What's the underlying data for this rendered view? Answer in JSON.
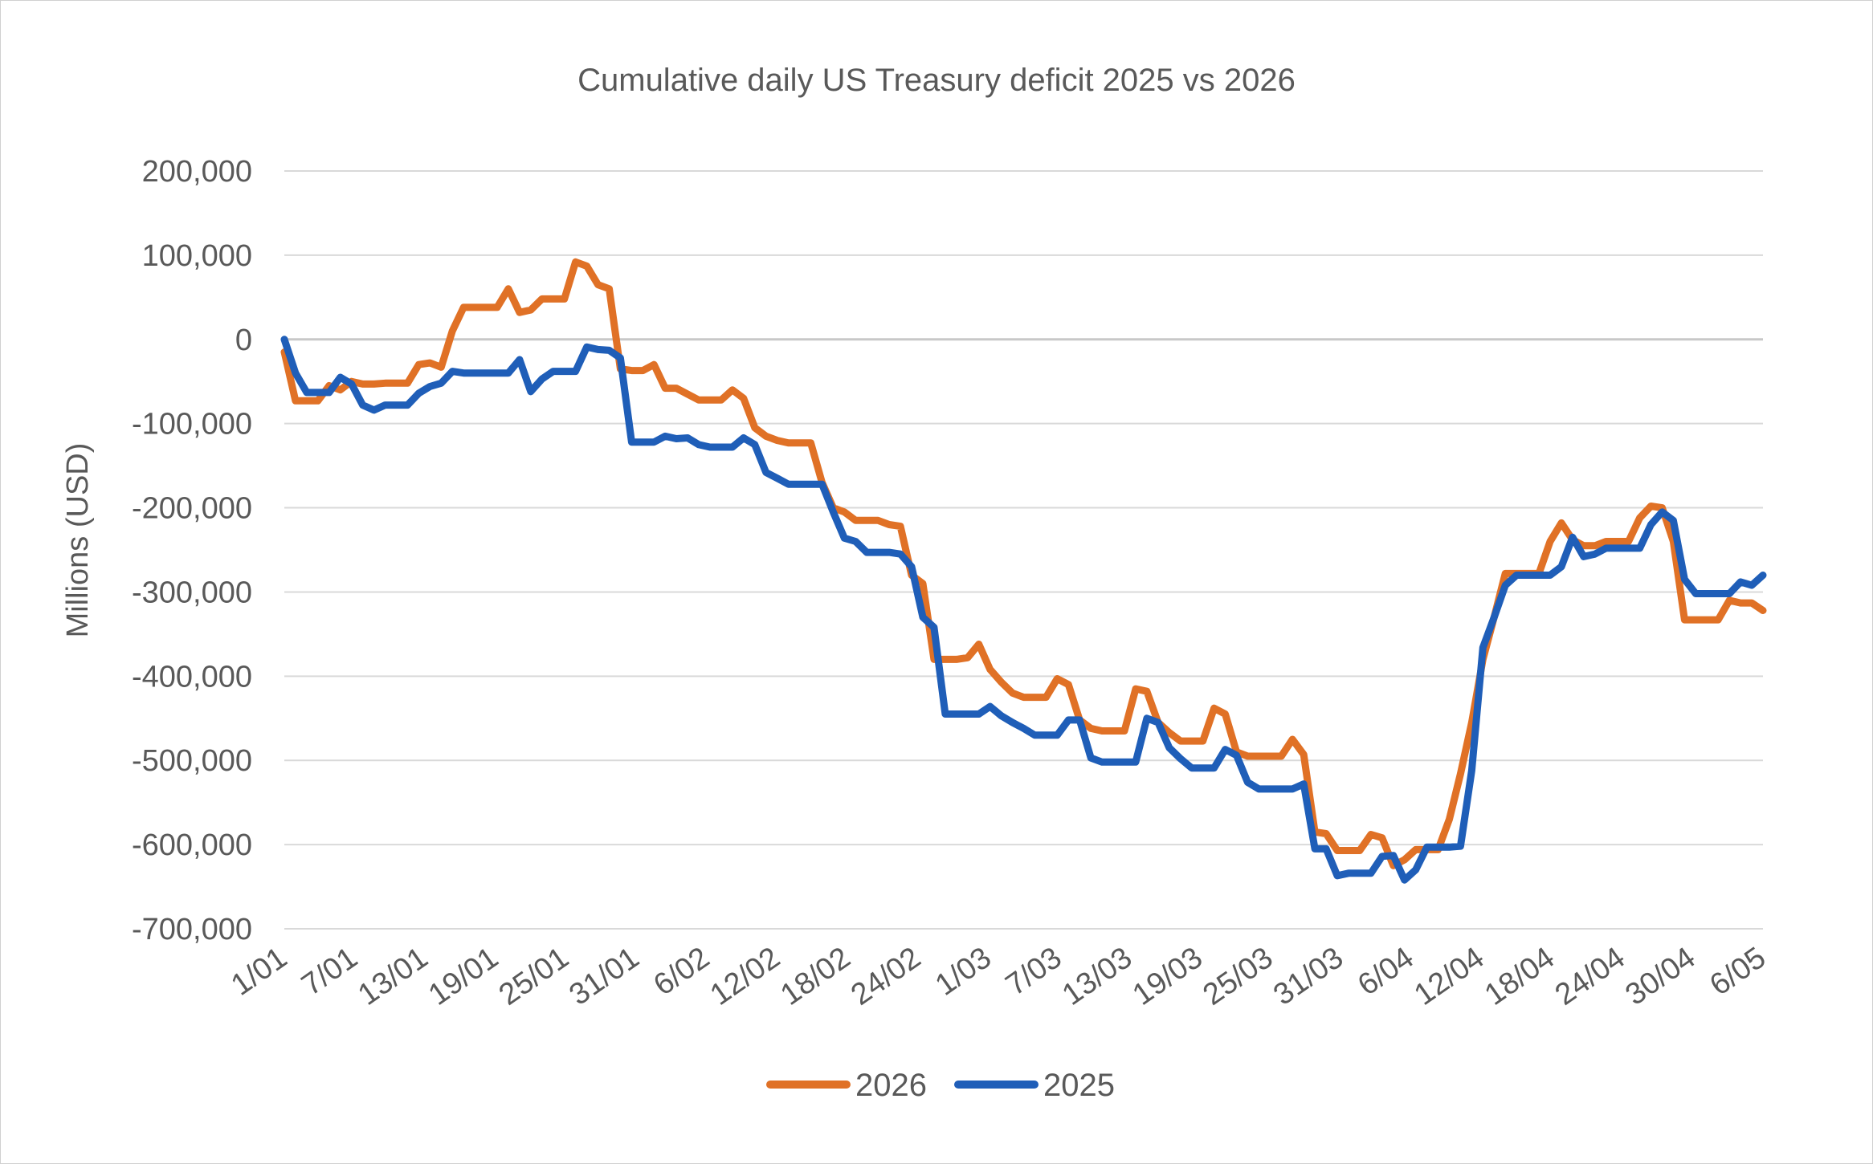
{
  "chart_data": {
    "type": "line",
    "title": "Cumulative daily US Treasury deficit 2025 vs 2026",
    "ylabel": "Millions (USD)",
    "xlabel": "",
    "ylim": [
      -700000,
      200000
    ],
    "yticks": [
      200000,
      100000,
      0,
      -100000,
      -200000,
      -300000,
      -400000,
      -500000,
      -600000,
      -700000
    ],
    "ytick_labels": [
      "200,000",
      "100,000",
      "0",
      "-100,000",
      "-200,000",
      "-300,000",
      "-400,000",
      "-500,000",
      "-600,000",
      "-700,000"
    ],
    "xtick_labels": [
      "1/01",
      "7/01",
      "13/01",
      "19/01",
      "25/01",
      "31/01",
      "6/02",
      "12/02",
      "18/02",
      "24/02",
      "1/03",
      "7/03",
      "13/03",
      "19/03",
      "25/03",
      "31/03",
      "6/04",
      "12/04",
      "18/04",
      "24/04",
      "30/04",
      "6/05"
    ],
    "x_start": "1/01",
    "x_end": "6/05",
    "grid": true,
    "legend": "bottom",
    "series": [
      {
        "name": "2026",
        "color": "#e07126",
        "values": [
          -15000,
          -73000,
          -73000,
          -73000,
          -55000,
          -60000,
          -50000,
          -53000,
          -53000,
          -52000,
          -52000,
          -52000,
          -30000,
          -28000,
          -33000,
          10000,
          38000,
          38000,
          38000,
          38000,
          60000,
          32000,
          35000,
          48000,
          48000,
          48000,
          92000,
          87000,
          65000,
          60000,
          -35000,
          -37000,
          -37000,
          -30000,
          -58000,
          -58000,
          -65000,
          -72000,
          -72000,
          -72000,
          -60000,
          -70000,
          -105000,
          -115000,
          -120000,
          -123000,
          -123000,
          -123000,
          -170000,
          -200000,
          -205000,
          -215000,
          -215000,
          -215000,
          -220000,
          -222000,
          -280000,
          -290000,
          -380000,
          -380000,
          -380000,
          -378000,
          -362000,
          -392000,
          -407000,
          -420000,
          -425000,
          -425000,
          -425000,
          -403000,
          -410000,
          -452000,
          -462000,
          -465000,
          -465000,
          -465000,
          -415000,
          -418000,
          -455000,
          -467000,
          -477000,
          -477000,
          -477000,
          -438000,
          -445000,
          -490000,
          -495000,
          -495000,
          -495000,
          -495000,
          -475000,
          -493000,
          -585000,
          -587000,
          -607000,
          -607000,
          -607000,
          -588000,
          -592000,
          -625000,
          -618000,
          -606000,
          -606000,
          -606000,
          -570000,
          -516000,
          -455000,
          -380000,
          -330000,
          -278000,
          -278000,
          -278000,
          -278000,
          -240000,
          -218000,
          -238000,
          -245000,
          -245000,
          -240000,
          -240000,
          -240000,
          -212000,
          -198000,
          -200000,
          -240000,
          -333000,
          -333000,
          -333000,
          -333000,
          -310000,
          -313000,
          -313000,
          -322000
        ]
      },
      {
        "name": "2025",
        "color": "#1f5eb8",
        "values": [
          0,
          -40000,
          -63000,
          -63000,
          -63000,
          -45000,
          -53000,
          -78000,
          -84000,
          -78000,
          -78000,
          -78000,
          -64000,
          -56000,
          -52000,
          -38000,
          -40000,
          -40000,
          -40000,
          -40000,
          -40000,
          -24000,
          -62000,
          -47000,
          -38000,
          -38000,
          -38000,
          -9000,
          -12000,
          -13000,
          -22000,
          -122000,
          -122000,
          -122000,
          -115000,
          -118000,
          -117000,
          -125000,
          -128000,
          -128000,
          -128000,
          -117000,
          -125000,
          -158000,
          -165000,
          -172000,
          -172000,
          -172000,
          -172000,
          -205000,
          -236000,
          -240000,
          -253000,
          -253000,
          -253000,
          -255000,
          -270000,
          -330000,
          -342000,
          -445000,
          -445000,
          -445000,
          -445000,
          -436000,
          -447000,
          -455000,
          -462000,
          -470000,
          -470000,
          -470000,
          -452000,
          -452000,
          -497000,
          -502000,
          -502000,
          -502000,
          -502000,
          -450000,
          -455000,
          -485000,
          -498000,
          -509000,
          -509000,
          -509000,
          -487000,
          -494000,
          -526000,
          -534000,
          -534000,
          -534000,
          -534000,
          -528000,
          -605000,
          -605000,
          -637000,
          -634000,
          -634000,
          -634000,
          -614000,
          -613000,
          -642000,
          -630000,
          -603000,
          -603000,
          -603000,
          -602000,
          -512000,
          -366000,
          -330000,
          -292000,
          -280000,
          -280000,
          -280000,
          -280000,
          -270000,
          -235000,
          -258000,
          -255000,
          -248000,
          -248000,
          -248000,
          -248000,
          -220000,
          -205000,
          -215000,
          -285000,
          -302000,
          -302000,
          -302000,
          -302000,
          -288000,
          -292000,
          -280000
        ]
      }
    ]
  }
}
